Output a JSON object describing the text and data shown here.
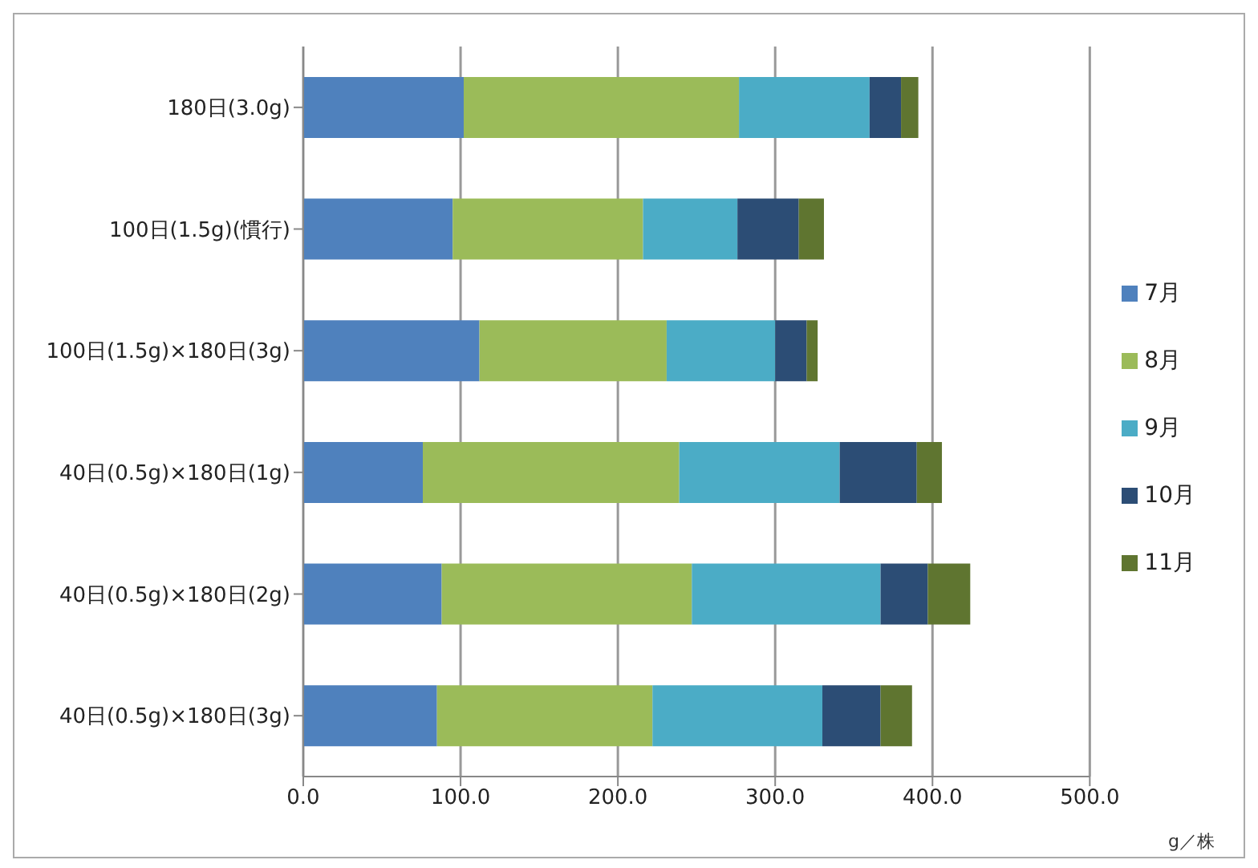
{
  "chart_data": {
    "type": "bar",
    "orientation": "horizontal",
    "stacked": true,
    "categories": [
      "180日(3.0g)",
      "100日(1.5g)(慣行)",
      "100日(1.5g)×180日(3g)",
      "40日(0.5g)×180日(1g)",
      "40日(0.5g)×180日(2g)",
      "40日(0.5g)×180日(3g)"
    ],
    "series": [
      {
        "name": "7月",
        "color": "#4f81bd",
        "values": [
          102,
          95,
          112,
          76,
          88,
          85
        ]
      },
      {
        "name": "8月",
        "color": "#9bbb59",
        "values": [
          175,
          121,
          119,
          163,
          159,
          137
        ]
      },
      {
        "name": "9月",
        "color": "#4bacc6",
        "values": [
          83,
          60,
          69,
          102,
          120,
          108
        ]
      },
      {
        "name": "10月",
        "color": "#2c4d75",
        "values": [
          20,
          39,
          20,
          49,
          30,
          37
        ]
      },
      {
        "name": "11月",
        "color": "#5f7530",
        "values": [
          11,
          16,
          7,
          16,
          27,
          20
        ]
      }
    ],
    "xlim": [
      0,
      500
    ],
    "xticks": [
      {
        "value": 0,
        "label": "0.0"
      },
      {
        "value": 100,
        "label": "100.0"
      },
      {
        "value": 200,
        "label": "200.0"
      },
      {
        "value": 300,
        "label": "300.0"
      },
      {
        "value": 400,
        "label": "400.0"
      },
      {
        "value": 500,
        "label": "500.0"
      }
    ],
    "grid": "x",
    "legend": "right",
    "annotations": [
      "g／株"
    ]
  }
}
